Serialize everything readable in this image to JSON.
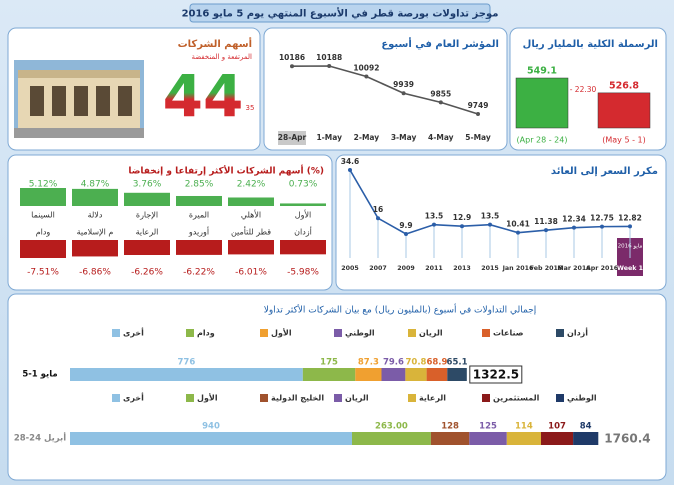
{
  "title": "موجز تداولات بورصة قطر في الأسبوع المنتهي يوم 5 مايو 2016",
  "chart_data": [
    {
      "type": "column",
      "title": "الرسملة الكلية بالمليار ريال",
      "categories": [
        "(Apr 28 - 24)",
        "(May 5 - 1)"
      ],
      "values": [
        549.1,
        526.8
      ],
      "colors": [
        "#3cb043",
        "#d42a2f"
      ],
      "annotation": "- 22.30"
    },
    {
      "type": "line",
      "title": "المؤشر العام في أسبوع",
      "categories": [
        "28-Apr",
        "1-May",
        "2-May",
        "3-May",
        "4-May",
        "5-May"
      ],
      "values": [
        10186,
        10188,
        10092,
        9939,
        9855,
        9749
      ],
      "color": "#555555"
    },
    {
      "type": "number",
      "title": "أسهم الشركات",
      "subtitle": "المرتفعة و المنخفضة",
      "values": [
        44,
        35
      ]
    },
    {
      "type": "tiles",
      "title": "أسهم الشركات الأكثر إرتفاعا و إنخفاضا (%)",
      "categories": [
        "السينما",
        "دلالة",
        "الإجارة",
        "الميرة",
        "الأهلي",
        "الأول"
      ],
      "values": [
        5.12,
        4.87,
        3.76,
        2.85,
        2.42,
        0.73
      ],
      "value_labels": [
        "5.12%",
        "4.87%",
        "3.76%",
        "2.85%",
        "2.42%",
        "0.73%"
      ],
      "color": "#4caf50"
    },
    {
      "type": "tiles",
      "categories": [
        "ودام",
        "م الإسلامية",
        "الرعاية",
        "أوريدو",
        "قطر للتأمين",
        "أزدان"
      ],
      "values": [
        -7.51,
        -6.86,
        -6.26,
        -6.22,
        -6.01,
        -5.98
      ],
      "value_labels": [
        "-7.51%",
        "-6.86%",
        "-6.26%",
        "-6.22%",
        "-6.01%",
        "-5.98%"
      ],
      "color": "#b71c1c"
    },
    {
      "type": "line",
      "title": "مكرر السعر إلى العائد",
      "categories": [
        "2005",
        "2007",
        "2009",
        "2011",
        "2013",
        "2015",
        "Jan 2016",
        "Feb 2016",
        "Mar 2016",
        "Apr 2016",
        "Week 1"
      ],
      "values": [
        34.6,
        16,
        9.9,
        13.5,
        12.9,
        13.5,
        10.41,
        11.38,
        12.34,
        12.75,
        12.82
      ],
      "color": "#2b5ea8",
      "annotation": "مايو 2016"
    },
    {
      "type": "stacked_bar",
      "title": "إجمالي التداولات في أسبوع (بالمليون ريال) مع بيان الشركات الأكثر تداولا",
      "categories": [
        "5-1 مايو"
      ],
      "total": 1322.5,
      "series": [
        {
          "name": "أخرى",
          "color": "#8fc1e3",
          "values": [
            776
          ]
        },
        {
          "name": "ودام",
          "color": "#8db84a",
          "values": [
            175
          ]
        },
        {
          "name": "الأول",
          "color": "#f0a030",
          "values": [
            87.3
          ]
        },
        {
          "name": "الوطني",
          "color": "#7b5ca8",
          "values": [
            79.6
          ]
        },
        {
          "name": "الريان",
          "color": "#d9b43a",
          "values": [
            70.8
          ]
        },
        {
          "name": "صناعات",
          "color": "#d9602a",
          "values": [
            68.9
          ]
        },
        {
          "name": "أزدان",
          "color": "#2d4a66",
          "values": [
            65.1
          ]
        }
      ]
    },
    {
      "type": "stacked_bar",
      "categories": [
        "28-24 أبريل"
      ],
      "total": 1760.4,
      "series": [
        {
          "name": "أخرى",
          "color": "#8fc1e3",
          "values": [
            940
          ]
        },
        {
          "name": "الأول",
          "color": "#8db84a",
          "values": [
            263
          ],
          "value_labels": [
            "263.00"
          ]
        },
        {
          "name": "الخليج الدولية",
          "color": "#a0522d",
          "values": [
            128
          ]
        },
        {
          "name": "الريان",
          "color": "#7b5ca8",
          "values": [
            125
          ]
        },
        {
          "name": "الرعاية",
          "color": "#d9b43a",
          "values": [
            114
          ]
        },
        {
          "name": "المستثمرين",
          "color": "#8b1a1a",
          "values": [
            107
          ]
        },
        {
          "name": "الوطني",
          "color": "#1f3a68",
          "values": [
            84
          ]
        }
      ]
    }
  ]
}
